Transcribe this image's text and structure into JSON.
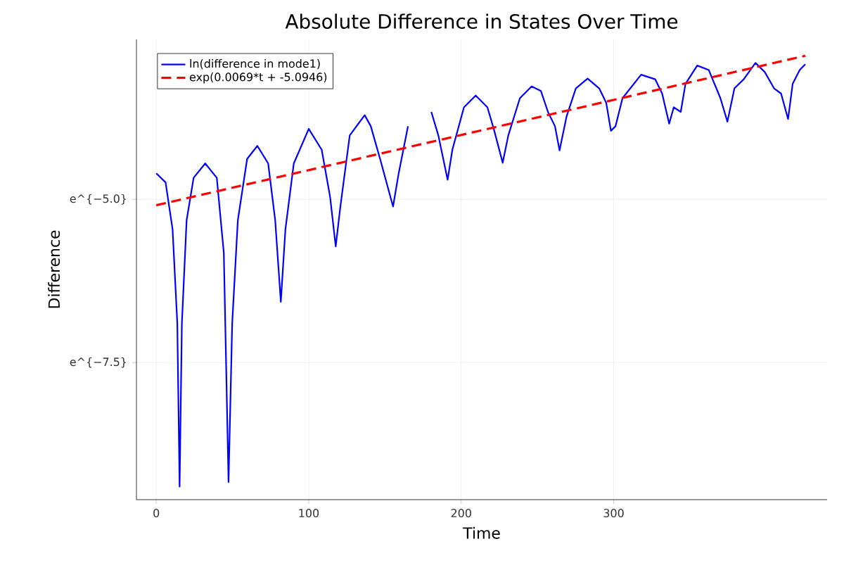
{
  "chart_data": {
    "type": "line",
    "title": "Absolute Difference in States Over Time",
    "xlabel": "Time",
    "ylabel": "Difference",
    "xlim": [
      -13,
      440
    ],
    "ylim": [
      -9.6,
      -2.55
    ],
    "xticks": [
      0,
      100,
      200,
      300
    ],
    "yticks": [
      {
        "value": -5.0,
        "label": "e^{−5.0}"
      },
      {
        "value": -7.5,
        "label": "e^{−7.5}"
      }
    ],
    "grid": true,
    "legend": "top left",
    "series": [
      {
        "name": "ln(difference in mode1)",
        "color": "#0000ff",
        "line_style": "solid",
        "x": [
          0,
          6.1,
          10.7,
          13.8,
          15.3,
          16.8,
          19.9,
          24.5,
          32.1,
          39.7,
          44.3,
          47.4,
          49.8,
          53.5,
          59.6,
          66.3,
          73.4,
          78.0,
          81.7,
          84.7,
          90.2,
          100,
          108.5,
          114.0,
          117.7,
          120.8,
          126.9,
          136.7,
          140.7,
          146.8,
          155.3,
          159.0,
          165.1,
          172.7,
          180.4,
          185.0,
          191.1,
          194.2,
          201.8,
          209.5,
          217.2,
          221.7,
          227.2,
          230.9,
          238.5,
          246.2,
          252.3,
          256.9,
          261.5,
          264.5,
          269.1,
          275.2,
          282.9,
          290.5,
          295.1,
          298.2,
          301.2,
          305.8,
          318.0,
          327.2,
          331.8,
          336.4,
          339.4,
          344.0,
          347.1,
          354.8,
          362.4,
          370.0,
          374.6,
          379.2,
          385.3,
          393.0,
          399.1,
          405.2,
          409.8,
          414.4,
          417.4,
          422.0,
          425.7
        ],
        "values": [
          -4.6,
          -4.74,
          -5.46,
          -6.9,
          -9.4,
          -6.9,
          -5.32,
          -4.67,
          -4.45,
          -4.67,
          -5.82,
          -9.33,
          -6.9,
          -5.32,
          -4.38,
          -4.18,
          -4.45,
          -5.32,
          -6.57,
          -5.46,
          -4.45,
          -3.92,
          -4.24,
          -4.96,
          -5.72,
          -5.1,
          -4.02,
          -3.71,
          -3.88,
          -4.38,
          -5.11,
          -4.6,
          -3.88,
          null,
          -3.66,
          -4.02,
          -4.7,
          -4.24,
          -3.59,
          -3.41,
          -3.59,
          -3.95,
          -4.44,
          -4.02,
          -3.45,
          -3.27,
          -3.34,
          -3.66,
          -3.88,
          -4.25,
          -3.73,
          -3.3,
          -3.15,
          -3.3,
          -3.52,
          -3.95,
          -3.88,
          -3.45,
          -3.09,
          -3.16,
          -3.38,
          -3.84,
          -3.59,
          -3.66,
          -3.23,
          -2.95,
          -3.02,
          -3.45,
          -3.81,
          -3.3,
          -3.16,
          -2.91,
          -3.05,
          -3.3,
          -3.38,
          -3.77,
          -3.23,
          -3.02,
          -2.93
        ]
      },
      {
        "name": "exp(0.0069*t + -5.0946)",
        "color": "#ff0000",
        "line_style": "dashed",
        "x": [
          0,
          425.7
        ],
        "values": [
          -5.09,
          -2.8
        ]
      }
    ]
  }
}
